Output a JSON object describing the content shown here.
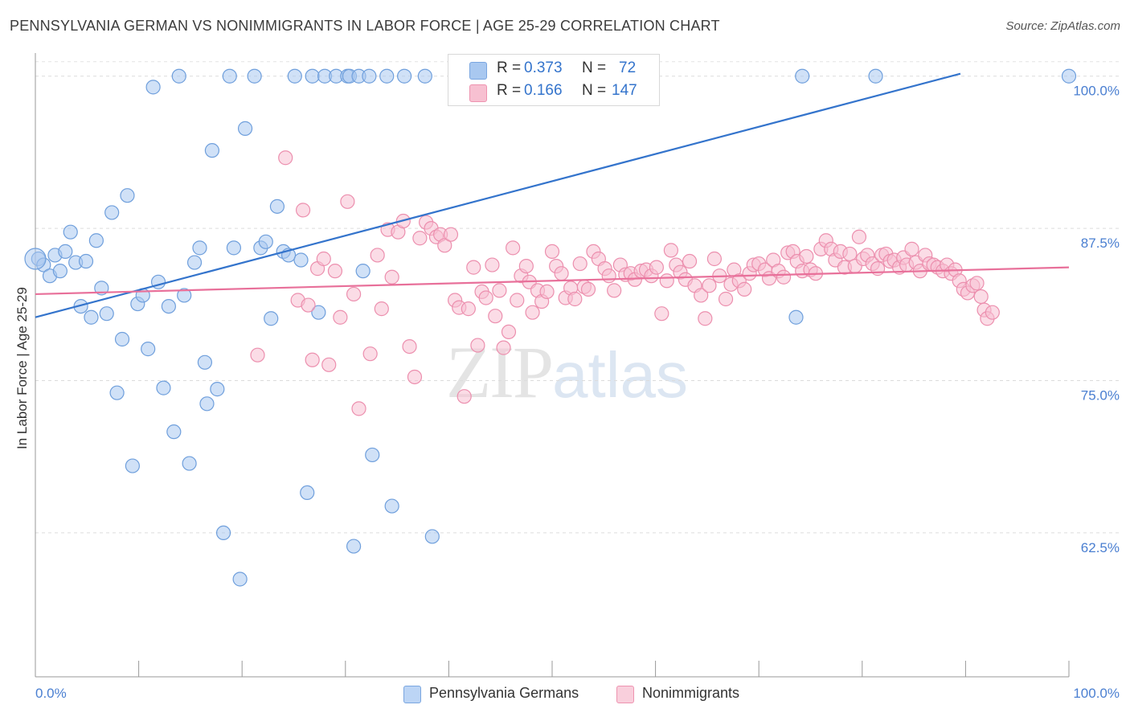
{
  "title": "PENNSYLVANIA GERMAN VS NONIMMIGRANTS IN LABOR FORCE | AGE 25-29 CORRELATION CHART",
  "source": "Source: ZipAtlas.com",
  "watermark": {
    "zip": "ZIP",
    "atlas": "atlas"
  },
  "legend": {
    "rows": [
      {
        "r_label": "R = ",
        "r_value": "0.373",
        "n_label": "N = ",
        "n_value": "72",
        "color": "#a9c8f0",
        "edge": "#7aa6e0"
      },
      {
        "r_label": "R = ",
        "r_value": "0.166",
        "n_label": "N = ",
        "n_value": "147",
        "color": "#f7c0d1",
        "edge": "#ee93b0"
      }
    ]
  },
  "bottom_legend": [
    {
      "label": "Pennsylvania Germans",
      "color": "#bcd5f5",
      "edge": "#7aa6e0"
    },
    {
      "label": "Nonimmigrants",
      "color": "#f9cfdc",
      "edge": "#ee93b0"
    }
  ],
  "chart_data": {
    "type": "scatter",
    "title": "PENNSYLVANIA GERMAN VS NONIMMIGRANTS IN LABOR FORCE | AGE 25-29 CORRELATION CHART",
    "xlabel": "",
    "ylabel": "In Labor Force | Age 25-29",
    "xlim": [
      0,
      100
    ],
    "ylim": [
      52,
      101.5
    ],
    "x_tick_labels": [
      "0.0%",
      "100.0%"
    ],
    "y_ticks": [
      {
        "value": 100,
        "label": "100.0%"
      },
      {
        "value": 87.5,
        "label": "87.5%"
      },
      {
        "value": 75,
        "label": "75.0%"
      },
      {
        "value": 62.5,
        "label": "62.5%"
      }
    ],
    "grid": true,
    "series": [
      {
        "name": "Pennsylvania Germans",
        "color": "#a9c8f0",
        "edge": "#6f9fdc",
        "trend": {
          "x": [
            0,
            89.5
          ],
          "y": [
            80.2,
            100.2
          ],
          "color": "#3474cc"
        },
        "points": [
          [
            0.3,
            85.0
          ],
          [
            0.8,
            84.5
          ],
          [
            1.4,
            83.6
          ],
          [
            1.9,
            85.3
          ],
          [
            2.4,
            84.0
          ],
          [
            2.9,
            85.6
          ],
          [
            3.4,
            87.2
          ],
          [
            3.9,
            84.7
          ],
          [
            4.4,
            81.1
          ],
          [
            4.9,
            84.8
          ],
          [
            5.4,
            80.2
          ],
          [
            5.9,
            86.5
          ],
          [
            6.4,
            82.6
          ],
          [
            6.9,
            80.5
          ],
          [
            7.4,
            88.8
          ],
          [
            7.9,
            74.0
          ],
          [
            8.4,
            78.4
          ],
          [
            8.9,
            90.2
          ],
          [
            9.4,
            68.0
          ],
          [
            9.9,
            81.3
          ],
          [
            10.4,
            82.0
          ],
          [
            10.9,
            77.6
          ],
          [
            11.4,
            99.1
          ],
          [
            11.9,
            83.1
          ],
          [
            12.4,
            74.4
          ],
          [
            12.9,
            81.1
          ],
          [
            13.4,
            70.8
          ],
          [
            13.9,
            100
          ],
          [
            14.4,
            82.0
          ],
          [
            14.9,
            68.2
          ],
          [
            15.4,
            84.7
          ],
          [
            15.9,
            85.9
          ],
          [
            16.4,
            76.5
          ],
          [
            16.6,
            73.1
          ],
          [
            17.1,
            93.9
          ],
          [
            17.6,
            74.3
          ],
          [
            18.2,
            62.5
          ],
          [
            18.8,
            100
          ],
          [
            19.2,
            85.9
          ],
          [
            19.8,
            58.7
          ],
          [
            20.3,
            95.7
          ],
          [
            21.2,
            100
          ],
          [
            21.8,
            85.9
          ],
          [
            22.3,
            86.4
          ],
          [
            22.8,
            80.1
          ],
          [
            23.4,
            89.3
          ],
          [
            24.0,
            85.6
          ],
          [
            24.5,
            85.3
          ],
          [
            25.1,
            100
          ],
          [
            25.7,
            84.9
          ],
          [
            26.3,
            65.8
          ],
          [
            26.8,
            100
          ],
          [
            27.4,
            80.6
          ],
          [
            28.0,
            100
          ],
          [
            29.1,
            100
          ],
          [
            30.2,
            100
          ],
          [
            30.4,
            100
          ],
          [
            30.8,
            61.4
          ],
          [
            31.3,
            100
          ],
          [
            31.7,
            84.0
          ],
          [
            32.3,
            100
          ],
          [
            32.6,
            68.9
          ],
          [
            34.0,
            100
          ],
          [
            34.5,
            64.7
          ],
          [
            35.7,
            100
          ],
          [
            37.7,
            100
          ],
          [
            38.4,
            62.2
          ],
          [
            41.0,
            100
          ],
          [
            73.6,
            80.2
          ],
          [
            74.2,
            100
          ],
          [
            81.3,
            100
          ],
          [
            100.0,
            100
          ]
        ]
      },
      {
        "name": "Nonimmigrants",
        "color": "#f7c0d1",
        "edge": "#ec8fae",
        "trend": {
          "x": [
            0,
            100
          ],
          "y": [
            82.1,
            84.3
          ],
          "color": "#e8709a"
        },
        "points": [
          [
            21.5,
            77.1
          ],
          [
            24.2,
            93.3
          ],
          [
            25.4,
            81.6
          ],
          [
            25.9,
            89.0
          ],
          [
            26.4,
            81.2
          ],
          [
            26.8,
            76.7
          ],
          [
            27.3,
            84.2
          ],
          [
            27.9,
            85.0
          ],
          [
            28.4,
            76.3
          ],
          [
            29.0,
            84.0
          ],
          [
            29.5,
            80.2
          ],
          [
            30.2,
            89.7
          ],
          [
            30.8,
            82.1
          ],
          [
            31.3,
            72.7
          ],
          [
            32.4,
            77.2
          ],
          [
            33.1,
            85.3
          ],
          [
            33.5,
            80.9
          ],
          [
            34.1,
            87.4
          ],
          [
            34.5,
            83.5
          ],
          [
            35.1,
            87.2
          ],
          [
            35.6,
            88.1
          ],
          [
            36.2,
            77.8
          ],
          [
            36.7,
            75.3
          ],
          [
            37.2,
            86.7
          ],
          [
            37.8,
            88.0
          ],
          [
            38.3,
            87.5
          ],
          [
            38.8,
            86.8
          ],
          [
            39.2,
            87.0
          ],
          [
            39.6,
            86.1
          ],
          [
            40.2,
            87.0
          ],
          [
            40.6,
            81.6
          ],
          [
            41.0,
            81.0
          ],
          [
            41.5,
            73.7
          ],
          [
            41.9,
            80.9
          ],
          [
            42.4,
            84.3
          ],
          [
            42.8,
            77.9
          ],
          [
            43.2,
            82.3
          ],
          [
            43.6,
            81.8
          ],
          [
            44.2,
            84.5
          ],
          [
            44.5,
            80.3
          ],
          [
            44.9,
            82.4
          ],
          [
            45.3,
            77.7
          ],
          [
            45.8,
            79.0
          ],
          [
            46.2,
            85.9
          ],
          [
            46.6,
            81.6
          ],
          [
            47.0,
            83.6
          ],
          [
            47.5,
            84.4
          ],
          [
            47.8,
            83.1
          ],
          [
            48.1,
            80.6
          ],
          [
            48.6,
            82.4
          ],
          [
            49.0,
            81.5
          ],
          [
            49.5,
            82.3
          ],
          [
            50.0,
            85.6
          ],
          [
            50.4,
            84.4
          ],
          [
            50.9,
            83.8
          ],
          [
            51.3,
            81.8
          ],
          [
            51.8,
            82.6
          ],
          [
            52.2,
            81.7
          ],
          [
            52.7,
            84.6
          ],
          [
            53.1,
            82.7
          ],
          [
            53.5,
            82.5
          ],
          [
            54.0,
            85.6
          ],
          [
            54.5,
            85.0
          ],
          [
            55.1,
            84.2
          ],
          [
            55.5,
            83.6
          ],
          [
            56.0,
            82.4
          ],
          [
            56.6,
            84.5
          ],
          [
            57.1,
            83.7
          ],
          [
            57.6,
            83.8
          ],
          [
            58.0,
            83.3
          ],
          [
            58.6,
            84.0
          ],
          [
            59.1,
            84.1
          ],
          [
            59.6,
            83.6
          ],
          [
            60.1,
            84.3
          ],
          [
            60.6,
            80.5
          ],
          [
            61.1,
            83.2
          ],
          [
            61.5,
            85.7
          ],
          [
            62.0,
            84.5
          ],
          [
            62.4,
            83.9
          ],
          [
            62.9,
            83.3
          ],
          [
            63.3,
            84.8
          ],
          [
            63.8,
            82.8
          ],
          [
            64.4,
            82.0
          ],
          [
            64.8,
            80.1
          ],
          [
            65.2,
            82.8
          ],
          [
            65.7,
            85.0
          ],
          [
            66.2,
            83.6
          ],
          [
            66.8,
            81.7
          ],
          [
            67.3,
            82.9
          ],
          [
            67.6,
            84.1
          ],
          [
            68.1,
            83.2
          ],
          [
            68.6,
            82.5
          ],
          [
            69.1,
            83.8
          ],
          [
            69.5,
            84.5
          ],
          [
            70.0,
            84.6
          ],
          [
            70.6,
            84.1
          ],
          [
            71.0,
            83.4
          ],
          [
            71.4,
            84.9
          ],
          [
            71.9,
            84.0
          ],
          [
            72.4,
            83.5
          ],
          [
            72.8,
            85.5
          ],
          [
            73.3,
            85.6
          ],
          [
            73.7,
            84.8
          ],
          [
            74.2,
            84.0
          ],
          [
            74.6,
            85.2
          ],
          [
            75.0,
            84.1
          ],
          [
            75.5,
            83.8
          ],
          [
            76.0,
            85.8
          ],
          [
            76.5,
            86.5
          ],
          [
            77.0,
            85.8
          ],
          [
            77.4,
            84.9
          ],
          [
            77.9,
            85.6
          ],
          [
            78.3,
            84.3
          ],
          [
            78.8,
            85.4
          ],
          [
            79.3,
            84.4
          ],
          [
            79.7,
            86.8
          ],
          [
            80.1,
            85.0
          ],
          [
            80.5,
            85.3
          ],
          [
            81.0,
            84.6
          ],
          [
            81.5,
            84.2
          ],
          [
            81.9,
            85.3
          ],
          [
            82.3,
            85.4
          ],
          [
            82.7,
            84.8
          ],
          [
            83.1,
            84.9
          ],
          [
            83.6,
            84.3
          ],
          [
            84.0,
            85.1
          ],
          [
            84.3,
            84.5
          ],
          [
            84.8,
            85.8
          ],
          [
            85.2,
            84.7
          ],
          [
            85.6,
            84.0
          ],
          [
            86.1,
            85.3
          ],
          [
            86.5,
            84.6
          ],
          [
            86.9,
            84.5
          ],
          [
            87.3,
            84.3
          ],
          [
            87.8,
            84.0
          ],
          [
            88.2,
            84.5
          ],
          [
            88.6,
            83.8
          ],
          [
            89.0,
            84.1
          ],
          [
            89.4,
            83.2
          ],
          [
            89.8,
            82.5
          ],
          [
            90.2,
            82.2
          ],
          [
            90.7,
            82.8
          ],
          [
            91.1,
            83.0
          ],
          [
            91.5,
            81.9
          ],
          [
            91.8,
            80.8
          ],
          [
            92.1,
            80.1
          ],
          [
            92.6,
            80.6
          ]
        ]
      }
    ]
  }
}
